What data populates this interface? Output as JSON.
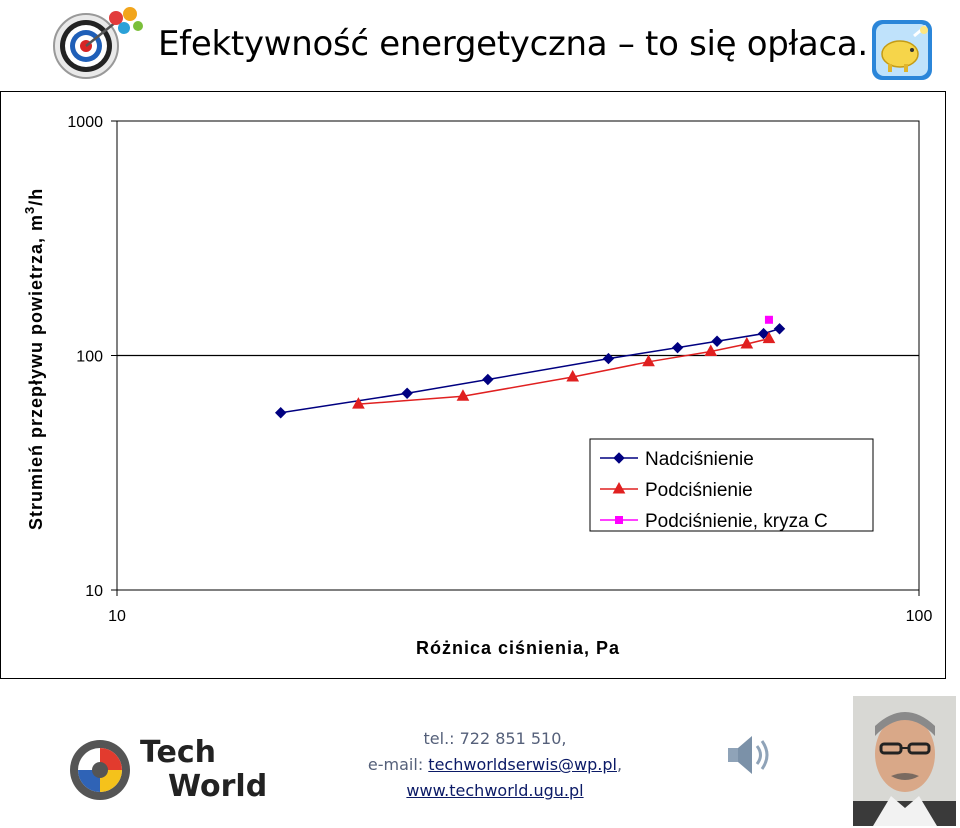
{
  "header": {
    "title": "Efektywność energetyczna – to się opłaca."
  },
  "chart_data": {
    "type": "line",
    "xlabel": "Różnica ciśnienia, Pa",
    "ylabel": "Strumień przepływu powietrza, m³/h",
    "ylabel_main": "Strumień przepływu powietrza, m",
    "ylabel_sup": "3",
    "ylabel_tail": "/h",
    "x_scale": "log",
    "y_scale": "log",
    "xlim": [
      10,
      100
    ],
    "ylim": [
      10,
      1000
    ],
    "x_ticks": [
      "10",
      "100"
    ],
    "y_ticks": [
      "1000",
      "100",
      "10"
    ],
    "grid": "horizontal line at 100",
    "legend_position": "center-right",
    "series": [
      {
        "name": "Nadciśnienie",
        "color": "#000080",
        "marker": "diamond",
        "points": [
          [
            16,
            57
          ],
          [
            23,
            69
          ],
          [
            29,
            79
          ],
          [
            41,
            97
          ],
          [
            50,
            108
          ],
          [
            56,
            115
          ],
          [
            64,
            124
          ],
          [
            67,
            130
          ]
        ]
      },
      {
        "name": "Podciśnienie",
        "color": "#e02020",
        "marker": "triangle",
        "points": [
          [
            20,
            62
          ],
          [
            27,
            67
          ],
          [
            37,
            81
          ],
          [
            46,
            94
          ],
          [
            55,
            104
          ],
          [
            61,
            112
          ],
          [
            65,
            118
          ]
        ]
      },
      {
        "name": "Podciśnienie, kryza C",
        "color": "#ff00ff",
        "marker": "square",
        "points": [
          [
            65,
            142
          ]
        ]
      }
    ]
  },
  "footer": {
    "logo_line1": "Tech",
    "logo_line2": "World",
    "contact_phone": "tel.: 722 851 510,",
    "contact_email_prefix": "e-mail: ",
    "contact_email": "techworldserwis@wp.pl",
    "contact_email_suffix": ",",
    "contact_www": "www.techworld.ugu.pl"
  }
}
